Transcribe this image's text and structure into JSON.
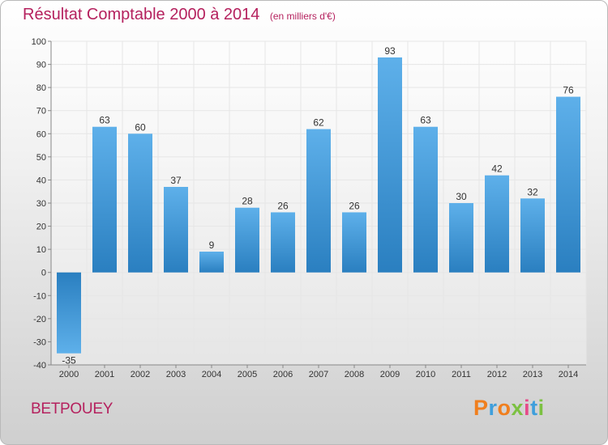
{
  "header": {
    "title": "Résultat Comptable 2000 à 2014",
    "subtitle": "(en milliers d'€)"
  },
  "footer": {
    "commune": "BETPOUEY",
    "logo_text": "Proxiti",
    "logo_colors": [
      "#f07f1e",
      "#3f9fdc",
      "#f07f1e",
      "#7cc142",
      "#e64b8a",
      "#3f9fdc",
      "#7cc142"
    ]
  },
  "colors": {
    "bar_light": "#5eb0ea",
    "bar_dark": "#2a7fc0",
    "title": "#b5215e",
    "grid": "#e6e6e6"
  },
  "chart_data": {
    "type": "bar",
    "categories": [
      "2000",
      "2001",
      "2002",
      "2003",
      "2004",
      "2005",
      "2006",
      "2007",
      "2008",
      "2009",
      "2010",
      "2011",
      "2012",
      "2013",
      "2014"
    ],
    "values": [
      -35,
      63,
      60,
      37,
      9,
      28,
      26,
      62,
      26,
      93,
      63,
      30,
      42,
      32,
      76
    ],
    "ylim": [
      -40,
      100
    ],
    "yticks": [
      -40,
      -30,
      -20,
      -10,
      0,
      10,
      20,
      30,
      40,
      50,
      60,
      70,
      80,
      90,
      100
    ],
    "grid": true
  }
}
